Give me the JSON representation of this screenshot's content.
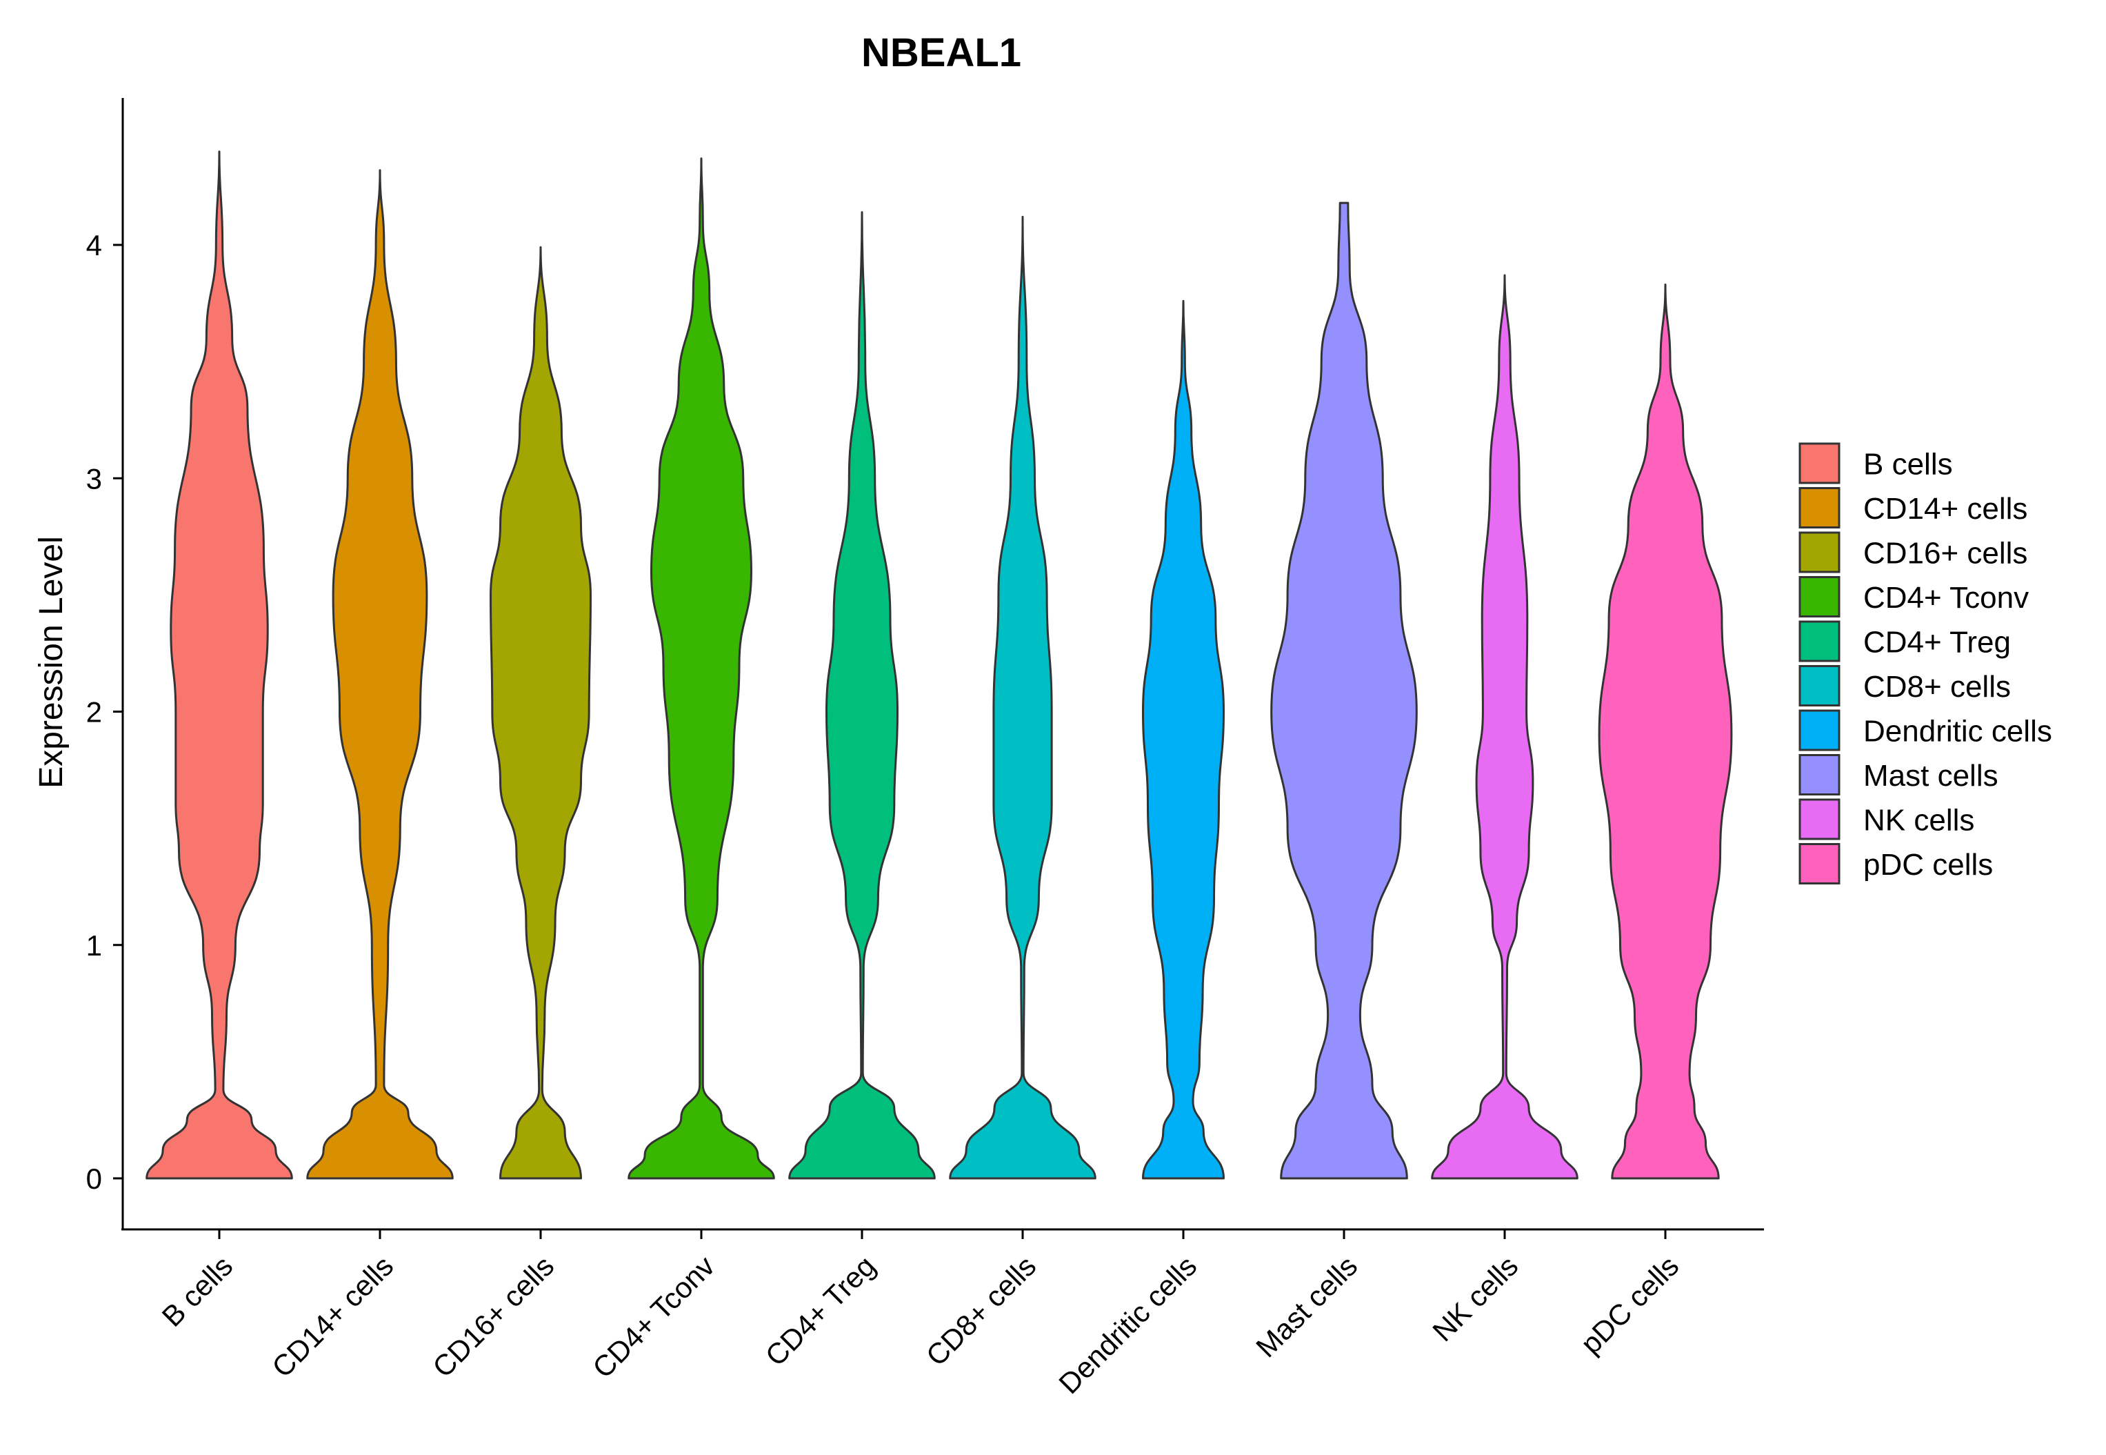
{
  "chart_data": {
    "type": "violin",
    "title": "NBEAL1",
    "xlabel": "",
    "ylabel": "Expression Level",
    "ylim": [
      -0.22,
      4.62
    ],
    "yticks": [
      0,
      1,
      2,
      3,
      4
    ],
    "ytick_labels": [
      "0",
      "1",
      "2",
      "3",
      "4"
    ],
    "grid": false,
    "legend_position": "right",
    "categories": [
      "B cells",
      "CD14+ cells",
      "CD16+ cells",
      "CD4+ Tconv",
      "CD4+ Treg",
      "CD8+ cells",
      "Dendritic cells",
      "Mast cells",
      "NK cells",
      "pDC cells"
    ],
    "colors": [
      "#F8766D",
      "#D89000",
      "#A3A500",
      "#39B600",
      "#00BF7D",
      "#00BFC4",
      "#00B0F6",
      "#9590FF",
      "#E76BF3",
      "#FF62BC"
    ],
    "series": [
      {
        "name": "B cells",
        "max": 4.4,
        "profile": [
          [
            0.0,
            0.9
          ],
          [
            0.12,
            0.7
          ],
          [
            0.25,
            0.4
          ],
          [
            0.38,
            0.05
          ],
          [
            0.7,
            0.09
          ],
          [
            1.0,
            0.2
          ],
          [
            1.4,
            0.5
          ],
          [
            1.6,
            0.54
          ],
          [
            2.0,
            0.54
          ],
          [
            2.35,
            0.6
          ],
          [
            2.7,
            0.55
          ],
          [
            3.3,
            0.35
          ],
          [
            3.6,
            0.16
          ],
          [
            4.0,
            0.04
          ],
          [
            4.4,
            0.0
          ]
        ]
      },
      {
        "name": "CD14+ cells",
        "max": 4.32,
        "profile": [
          [
            0.0,
            0.9
          ],
          [
            0.12,
            0.7
          ],
          [
            0.28,
            0.35
          ],
          [
            0.4,
            0.05
          ],
          [
            1.0,
            0.1
          ],
          [
            1.5,
            0.25
          ],
          [
            2.0,
            0.5
          ],
          [
            2.5,
            0.58
          ],
          [
            3.0,
            0.4
          ],
          [
            3.5,
            0.2
          ],
          [
            4.0,
            0.05
          ],
          [
            4.32,
            0.0
          ]
        ]
      },
      {
        "name": "CD16+ cells",
        "max": 3.99,
        "profile": [
          [
            0.0,
            0.5
          ],
          [
            0.2,
            0.3
          ],
          [
            0.38,
            0.02
          ],
          [
            0.7,
            0.05
          ],
          [
            1.1,
            0.18
          ],
          [
            1.4,
            0.3
          ],
          [
            1.7,
            0.5
          ],
          [
            2.0,
            0.6
          ],
          [
            2.5,
            0.62
          ],
          [
            2.8,
            0.5
          ],
          [
            3.2,
            0.26
          ],
          [
            3.6,
            0.08
          ],
          [
            3.99,
            0.0
          ]
        ]
      },
      {
        "name": "CD4+ Tconv",
        "max": 4.37,
        "profile": [
          [
            0.0,
            0.9
          ],
          [
            0.1,
            0.7
          ],
          [
            0.26,
            0.25
          ],
          [
            0.4,
            0.02
          ],
          [
            0.9,
            0.02
          ],
          [
            1.2,
            0.2
          ],
          [
            1.8,
            0.4
          ],
          [
            2.2,
            0.47
          ],
          [
            2.6,
            0.62
          ],
          [
            3.0,
            0.52
          ],
          [
            3.4,
            0.28
          ],
          [
            3.8,
            0.1
          ],
          [
            4.1,
            0.02
          ],
          [
            4.37,
            0.0
          ]
        ]
      },
      {
        "name": "CD4+ Treg",
        "max": 4.14,
        "profile": [
          [
            0.0,
            0.9
          ],
          [
            0.12,
            0.7
          ],
          [
            0.3,
            0.4
          ],
          [
            0.45,
            0.01
          ],
          [
            0.9,
            0.02
          ],
          [
            1.2,
            0.2
          ],
          [
            1.6,
            0.4
          ],
          [
            2.0,
            0.44
          ],
          [
            2.4,
            0.35
          ],
          [
            3.0,
            0.16
          ],
          [
            3.5,
            0.04
          ],
          [
            4.14,
            0.0
          ]
        ]
      },
      {
        "name": "CD8+ cells",
        "max": 4.12,
        "profile": [
          [
            0.0,
            0.9
          ],
          [
            0.12,
            0.7
          ],
          [
            0.3,
            0.35
          ],
          [
            0.45,
            0.01
          ],
          [
            0.9,
            0.02
          ],
          [
            1.2,
            0.2
          ],
          [
            1.6,
            0.36
          ],
          [
            2.0,
            0.36
          ],
          [
            2.5,
            0.3
          ],
          [
            3.0,
            0.15
          ],
          [
            3.5,
            0.05
          ],
          [
            4.12,
            0.0
          ]
        ]
      },
      {
        "name": "Dendritic cells",
        "max": 3.76,
        "profile": [
          [
            0.0,
            0.5
          ],
          [
            0.2,
            0.25
          ],
          [
            0.33,
            0.12
          ],
          [
            0.5,
            0.2
          ],
          [
            0.8,
            0.24
          ],
          [
            1.2,
            0.38
          ],
          [
            1.6,
            0.44
          ],
          [
            2.0,
            0.5
          ],
          [
            2.4,
            0.4
          ],
          [
            2.8,
            0.22
          ],
          [
            3.2,
            0.1
          ],
          [
            3.5,
            0.02
          ],
          [
            3.76,
            0.0
          ]
        ]
      },
      {
        "name": "Mast cells",
        "max": 4.18,
        "profile": [
          [
            0.0,
            0.78
          ],
          [
            0.2,
            0.6
          ],
          [
            0.4,
            0.35
          ],
          [
            0.7,
            0.2
          ],
          [
            1.0,
            0.35
          ],
          [
            1.5,
            0.7
          ],
          [
            2.0,
            0.9
          ],
          [
            2.5,
            0.7
          ],
          [
            3.0,
            0.48
          ],
          [
            3.5,
            0.28
          ],
          [
            3.9,
            0.07
          ],
          [
            4.18,
            0.05
          ]
        ]
      },
      {
        "name": "NK cells",
        "max": 3.87,
        "profile": [
          [
            0.0,
            0.9
          ],
          [
            0.12,
            0.7
          ],
          [
            0.3,
            0.3
          ],
          [
            0.45,
            0.02
          ],
          [
            0.9,
            0.03
          ],
          [
            1.1,
            0.15
          ],
          [
            1.4,
            0.3
          ],
          [
            1.7,
            0.35
          ],
          [
            2.0,
            0.27
          ],
          [
            2.4,
            0.28
          ],
          [
            3.0,
            0.18
          ],
          [
            3.5,
            0.07
          ],
          [
            3.87,
            0.0
          ]
        ]
      },
      {
        "name": "pDC cells",
        "max": 3.83,
        "profile": [
          [
            0.0,
            0.66
          ],
          [
            0.15,
            0.5
          ],
          [
            0.3,
            0.36
          ],
          [
            0.45,
            0.3
          ],
          [
            0.7,
            0.38
          ],
          [
            1.0,
            0.56
          ],
          [
            1.4,
            0.68
          ],
          [
            1.9,
            0.82
          ],
          [
            2.4,
            0.7
          ],
          [
            2.8,
            0.46
          ],
          [
            3.2,
            0.22
          ],
          [
            3.5,
            0.06
          ],
          [
            3.83,
            0.0
          ]
        ]
      }
    ]
  }
}
